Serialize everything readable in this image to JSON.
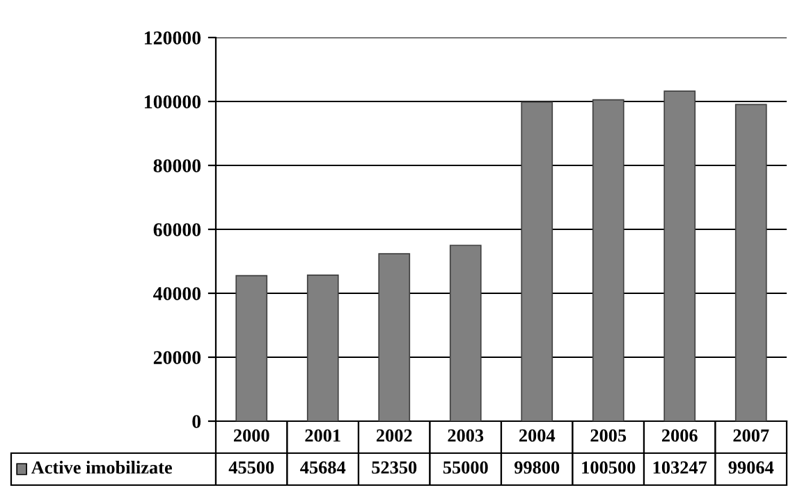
{
  "chart_data": {
    "type": "bar",
    "categories": [
      "2000",
      "2001",
      "2002",
      "2003",
      "2004",
      "2005",
      "2006",
      "2007"
    ],
    "series": [
      {
        "name": "Active imobilizate",
        "color": "#808080",
        "values": [
          45500,
          45684,
          52350,
          55000,
          99800,
          100500,
          103247,
          99064
        ]
      }
    ],
    "ylim": [
      0,
      120000
    ],
    "yticks": [
      0,
      20000,
      40000,
      60000,
      80000,
      100000,
      120000
    ],
    "grid": "y",
    "data_labels": true,
    "legend": "bottom"
  }
}
